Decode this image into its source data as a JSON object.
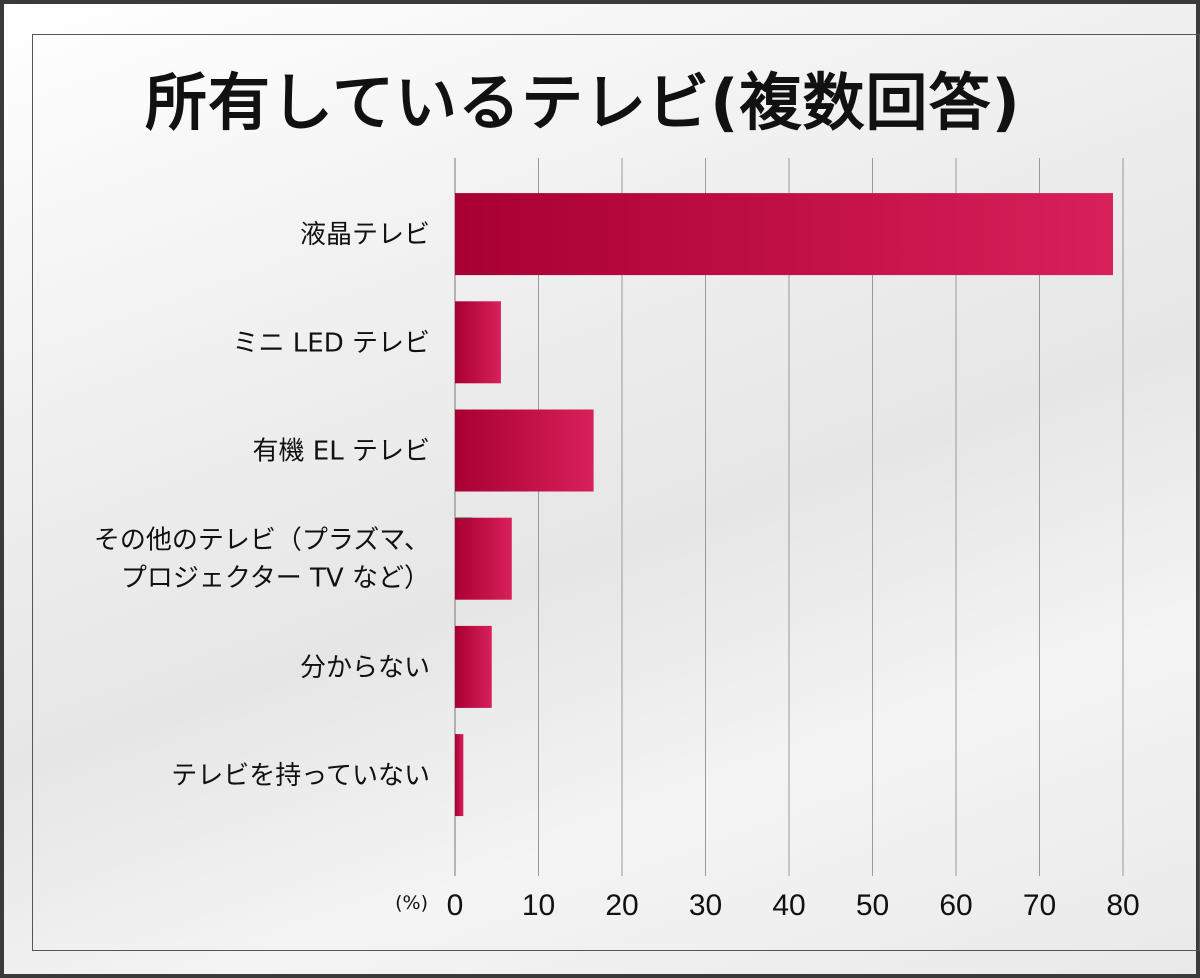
{
  "chart_data": {
    "type": "bar",
    "orientation": "horizontal",
    "title": "所有しているテレビ(複数回答)",
    "unit": "(%)",
    "categories": [
      [
        "液晶テレビ"
      ],
      [
        "ミニ LED テレビ"
      ],
      [
        "有機 EL テレビ"
      ],
      [
        "その他のテレビ（プラズマ、",
        "プロジェクター TV など）"
      ],
      [
        "分からない"
      ],
      [
        "テレビを持っていない"
      ]
    ],
    "values": [
      78.8,
      5.5,
      16.6,
      6.8,
      4.4,
      1.0
    ],
    "xlim": [
      0,
      80
    ],
    "xticks": [
      0,
      10,
      20,
      30,
      40,
      50,
      60,
      70,
      80
    ],
    "grid": true,
    "bar_color_dark": "#a80032",
    "bar_color_light": "#d8205a"
  }
}
